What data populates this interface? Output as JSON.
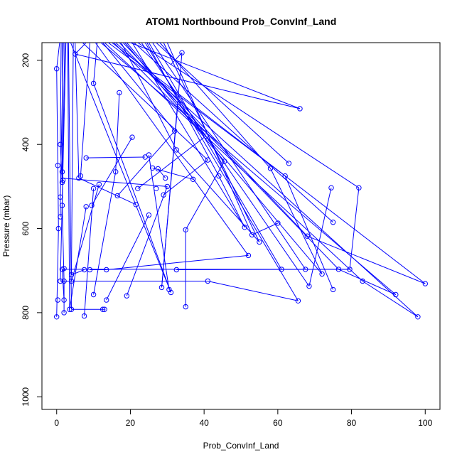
{
  "chart_data": {
    "type": "line",
    "title": "ATOM1 Northbound Prob_ConvInf_Land",
    "xlabel": "Prob_ConvInf_Land",
    "ylabel": "Pressure (mbar)",
    "xlim": [
      -4,
      104
    ],
    "ylim": [
      1030,
      158
    ],
    "y_reversed": true,
    "x_ticks": [
      0,
      20,
      40,
      60,
      80,
      100
    ],
    "y_ticks": [
      200,
      400,
      600,
      800,
      1000
    ],
    "grid": false,
    "legend": "none",
    "series": [
      {
        "color": "#0000ff",
        "x": [
          0,
          0.2,
          0.5,
          0.3,
          0,
          0.8,
          1.2,
          1.8,
          2.2,
          2.8,
          3.0,
          3.2,
          3.5
        ],
        "y": [
          810,
          770,
          600,
          450,
          220,
          158,
          158,
          158,
          158,
          158,
          158,
          158,
          158
        ],
        "segments": [
          {
            "x": [
              0,
              0.5
            ],
            "y": [
              810,
              600
            ]
          },
          {
            "x": [
              0.5,
              0.3
            ],
            "y": [
              600,
              450
            ]
          },
          {
            "x": [
              0.3,
              0
            ],
            "y": [
              450,
              220
            ]
          },
          {
            "x": [
              0,
              0.8
            ],
            "y": [
              220,
              158
            ]
          }
        ]
      }
    ],
    "points": [
      [
        0,
        810
      ],
      [
        0.3,
        770
      ],
      [
        0.5,
        600
      ],
      [
        0.3,
        450
      ],
      [
        0,
        220
      ],
      [
        1,
        400
      ],
      [
        1.5,
        465
      ],
      [
        1.7,
        485
      ],
      [
        1.5,
        490
      ],
      [
        1,
        525
      ],
      [
        1.5,
        545
      ],
      [
        1,
        572
      ],
      [
        1.5,
        697
      ],
      [
        2,
        695
      ],
      [
        1,
        725
      ],
      [
        2,
        725
      ],
      [
        2,
        770
      ],
      [
        2,
        800
      ],
      [
        4,
        710
      ],
      [
        4,
        725
      ],
      [
        4,
        792
      ],
      [
        3.5,
        792
      ],
      [
        5,
        185
      ],
      [
        6,
        480
      ],
      [
        6.5,
        475
      ],
      [
        7.5,
        808
      ],
      [
        7.5,
        698
      ],
      [
        8,
        548
      ],
      [
        8,
        432
      ],
      [
        9,
        698
      ],
      [
        9.5,
        545
      ],
      [
        10,
        255
      ],
      [
        10,
        505
      ],
      [
        11.5,
        495
      ],
      [
        10,
        757
      ],
      [
        12.5,
        792
      ],
      [
        13,
        792
      ],
      [
        13.5,
        770
      ],
      [
        13.5,
        698
      ],
      [
        16,
        465
      ],
      [
        16.5,
        522
      ],
      [
        17,
        277
      ],
      [
        19,
        760
      ],
      [
        20.5,
        383
      ],
      [
        21.5,
        543
      ],
      [
        22,
        505
      ],
      [
        24,
        430
      ],
      [
        25,
        425
      ],
      [
        25,
        568
      ],
      [
        26,
        456
      ],
      [
        27.5,
        458
      ],
      [
        27,
        505
      ],
      [
        28.5,
        740
      ],
      [
        29,
        520
      ],
      [
        29.5,
        480
      ],
      [
        30,
        500
      ],
      [
        30.5,
        745
      ],
      [
        31,
        752
      ],
      [
        32,
        368
      ],
      [
        32.5,
        413
      ],
      [
        32.5,
        698
      ],
      [
        34,
        182
      ],
      [
        35,
        603
      ],
      [
        35,
        786
      ],
      [
        37,
        483
      ],
      [
        40.5,
        380
      ],
      [
        41,
        437
      ],
      [
        41,
        725
      ],
      [
        44,
        475
      ],
      [
        45.5,
        440
      ],
      [
        51,
        597
      ],
      [
        52,
        664
      ],
      [
        53,
        615
      ],
      [
        55,
        632
      ],
      [
        58,
        457
      ],
      [
        60,
        587
      ],
      [
        61,
        697
      ],
      [
        62,
        475
      ],
      [
        63,
        445
      ],
      [
        65.5,
        772
      ],
      [
        66,
        315
      ],
      [
        67.5,
        697
      ],
      [
        68,
        618
      ],
      [
        68.5,
        737
      ],
      [
        72,
        708
      ],
      [
        74.5,
        503
      ],
      [
        75,
        585
      ],
      [
        75,
        745
      ],
      [
        76.5,
        697
      ],
      [
        79.5,
        697
      ],
      [
        82,
        503
      ],
      [
        83,
        725
      ],
      [
        92,
        757
      ],
      [
        98,
        810
      ],
      [
        100,
        731
      ]
    ]
  }
}
